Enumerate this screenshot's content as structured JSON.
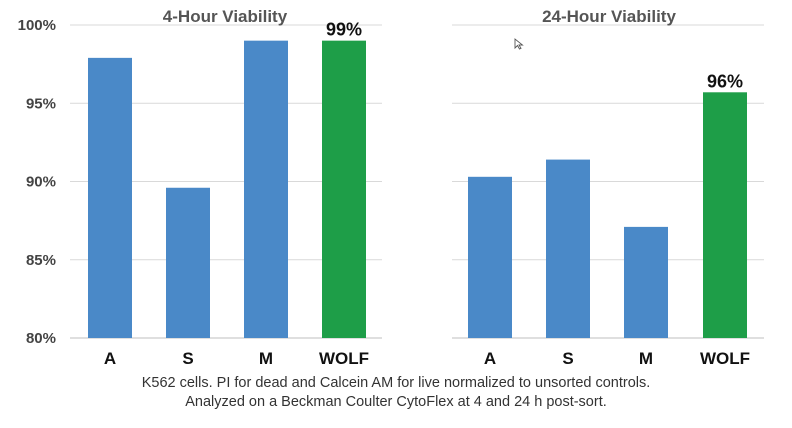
{
  "chart_data": [
    {
      "type": "bar",
      "title": "4-Hour Viability",
      "categories": [
        "A",
        "S",
        "M",
        "WOLF"
      ],
      "values": [
        97.9,
        89.6,
        99.0,
        99.0
      ],
      "bar_colors": [
        "#4a89c8",
        "#4a89c8",
        "#4a89c8",
        "#1e9e48"
      ],
      "data_labels": [
        "",
        "",
        "",
        "99%"
      ],
      "ylim": [
        80,
        100
      ],
      "yticks": [
        "80%",
        "85%",
        "90%",
        "95%",
        "100%"
      ],
      "grid": true
    },
    {
      "type": "bar",
      "title": "24-Hour Viability",
      "categories": [
        "A",
        "S",
        "M",
        "WOLF"
      ],
      "values": [
        90.3,
        91.4,
        87.1,
        95.7
      ],
      "bar_colors": [
        "#4a89c8",
        "#4a89c8",
        "#4a89c8",
        "#1e9e48"
      ],
      "data_labels": [
        "",
        "",
        "",
        "96%"
      ],
      "ylim": [
        80,
        100
      ],
      "grid": true
    }
  ],
  "caption": {
    "line1": "K562 cells. PI for dead and Calcein AM for live normalized to unsorted controls.",
    "line2": "Analyzed on a Beckman Coulter CytoFlex at 4 and 24 h post-sort."
  },
  "icons": {
    "cursor": "mouse-pointer-icon"
  }
}
